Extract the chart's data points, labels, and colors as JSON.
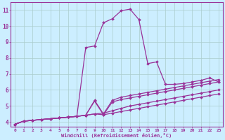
{
  "xlabel": "Windchill (Refroidissement éolien,°C)",
  "background_color": "#cceeff",
  "line_color": "#993399",
  "grid_color": "#aacccc",
  "text_color": "#993399",
  "xlim": [
    -0.5,
    23.5
  ],
  "ylim": [
    3.7,
    11.5
  ],
  "yticks": [
    4,
    5,
    6,
    7,
    8,
    9,
    10,
    11
  ],
  "xticks": [
    0,
    1,
    2,
    3,
    4,
    5,
    6,
    7,
    8,
    9,
    10,
    11,
    12,
    13,
    14,
    15,
    16,
    17,
    18,
    19,
    20,
    21,
    22,
    23
  ],
  "lines": [
    [
      3.85,
      4.05,
      4.1,
      4.15,
      4.2,
      4.25,
      4.3,
      4.35,
      4.42,
      4.5,
      4.45,
      4.55,
      4.65,
      4.75,
      4.85,
      4.95,
      5.05,
      5.15,
      5.25,
      5.35,
      5.45,
      5.55,
      5.65,
      5.75
    ],
    [
      3.85,
      4.05,
      4.1,
      4.15,
      4.2,
      4.25,
      4.3,
      4.35,
      4.42,
      4.5,
      4.55,
      4.7,
      4.85,
      5.0,
      5.1,
      5.2,
      5.3,
      5.4,
      5.5,
      5.6,
      5.7,
      5.8,
      5.9,
      6.0
    ],
    [
      3.85,
      4.05,
      4.1,
      4.15,
      4.2,
      4.25,
      4.3,
      4.35,
      4.42,
      5.3,
      4.45,
      5.25,
      5.4,
      5.5,
      5.6,
      5.7,
      5.8,
      5.9,
      6.0,
      6.1,
      6.2,
      6.3,
      6.4,
      6.5
    ],
    [
      3.85,
      4.05,
      4.1,
      4.15,
      4.2,
      4.25,
      4.3,
      4.35,
      4.42,
      5.35,
      4.5,
      5.35,
      5.55,
      5.65,
      5.75,
      5.85,
      5.95,
      6.05,
      6.15,
      6.25,
      6.35,
      6.45,
      6.55,
      6.65
    ],
    [
      3.85,
      4.05,
      4.1,
      4.15,
      4.2,
      4.25,
      4.3,
      4.35,
      8.65,
      8.75,
      10.2,
      10.45,
      10.95,
      11.05,
      10.4,
      7.65,
      7.75,
      6.35,
      6.35,
      6.4,
      6.5,
      6.6,
      6.75,
      6.5
    ]
  ]
}
